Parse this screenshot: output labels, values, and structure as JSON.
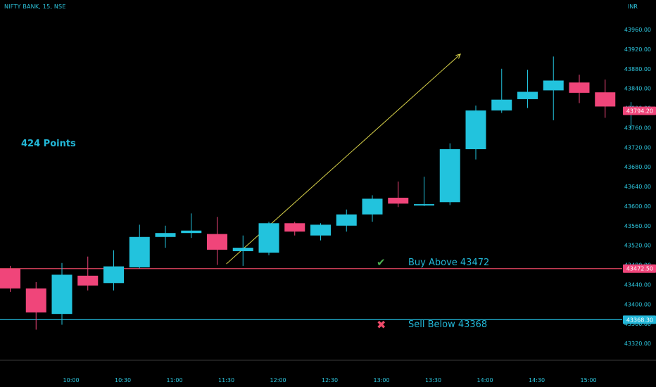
{
  "header": {
    "title": "NIFTY BANK, 15, NSE",
    "currency": "INR"
  },
  "annotations": {
    "points": "424 Points",
    "buy_text": "Buy Above 43472",
    "sell_text": "Sell Below 43368",
    "check_icon": "check-icon",
    "cross_icon": "cross-icon"
  },
  "colors": {
    "up": "#22c3dd",
    "down": "#f0457a",
    "buy_line": "#e0455f",
    "sell_line": "#22b6d8",
    "axis_text": "#2ec8e0",
    "trend_line": "#d8d24a"
  },
  "chart_data": {
    "type": "candlestick",
    "title": "NIFTY BANK, 15, NSE",
    "y_ticks": [
      43320,
      43360,
      43400,
      43440,
      43480,
      43520,
      43560,
      43600,
      43640,
      43680,
      43720,
      43760,
      43800,
      43840,
      43880,
      43920,
      43960
    ],
    "x_tick_labels": [
      "10:00",
      "10:30",
      "11:00",
      "11:30",
      "12:00",
      "12:30",
      "13:00",
      "13:30",
      "14:00",
      "14:30",
      "15:00"
    ],
    "ylim": [
      43300,
      43990
    ],
    "price_labels": [
      {
        "value": 43794.2,
        "text": "43794.20",
        "color": "#f0457a"
      },
      {
        "value": 43472.5,
        "text": "43472.50",
        "color": "#f0457a"
      },
      {
        "value": 43368.3,
        "text": "43368.30",
        "color": "#22b6d8"
      }
    ],
    "levels": [
      {
        "name": "Buy Above",
        "value": 43472.5
      },
      {
        "name": "Sell Below",
        "value": 43368.3
      }
    ],
    "candles": [
      {
        "open": 43472,
        "high": 43478,
        "low": 43425,
        "close": 43432
      },
      {
        "open": 43432,
        "high": 43445,
        "low": 43348,
        "close": 43383
      },
      {
        "open": 43380,
        "high": 43484,
        "low": 43358,
        "close": 43460
      },
      {
        "open": 43458,
        "high": 43497,
        "low": 43428,
        "close": 43438
      },
      {
        "open": 43443,
        "high": 43510,
        "low": 43428,
        "close": 43477
      },
      {
        "open": 43475,
        "high": 43562,
        "low": 43473,
        "close": 43537
      },
      {
        "open": 43537,
        "high": 43560,
        "low": 43515,
        "close": 43545
      },
      {
        "open": 43545,
        "high": 43585,
        "low": 43535,
        "close": 43550
      },
      {
        "open": 43543,
        "high": 43578,
        "low": 43480,
        "close": 43511
      },
      {
        "open": 43508,
        "high": 43540,
        "low": 43478,
        "close": 43515
      },
      {
        "open": 43505,
        "high": 43568,
        "low": 43500,
        "close": 43565
      },
      {
        "open": 43565,
        "high": 43568,
        "low": 43540,
        "close": 43548
      },
      {
        "open": 43540,
        "high": 43565,
        "low": 43530,
        "close": 43562
      },
      {
        "open": 43560,
        "high": 43593,
        "low": 43548,
        "close": 43583
      },
      {
        "open": 43583,
        "high": 43622,
        "low": 43568,
        "close": 43615
      },
      {
        "open": 43617,
        "high": 43650,
        "low": 43598,
        "close": 43605
      },
      {
        "open": 43602,
        "high": 43660,
        "low": 43600,
        "close": 43604
      },
      {
        "open": 43608,
        "high": 43728,
        "low": 43602,
        "close": 43716
      },
      {
        "open": 43716,
        "high": 43805,
        "low": 43695,
        "close": 43795
      },
      {
        "open": 43795,
        "high": 43880,
        "low": 43790,
        "close": 43817
      },
      {
        "open": 43818,
        "high": 43878,
        "low": 43800,
        "close": 43833
      },
      {
        "open": 43836,
        "high": 43905,
        "low": 43775,
        "close": 43856
      },
      {
        "open": 43852,
        "high": 43868,
        "low": 43810,
        "close": 43831
      },
      {
        "open": 43832,
        "high": 43858,
        "low": 43780,
        "close": 43803
      },
      {
        "open": 43794,
        "high": 43812,
        "low": 43756,
        "close": 43794
      }
    ]
  }
}
